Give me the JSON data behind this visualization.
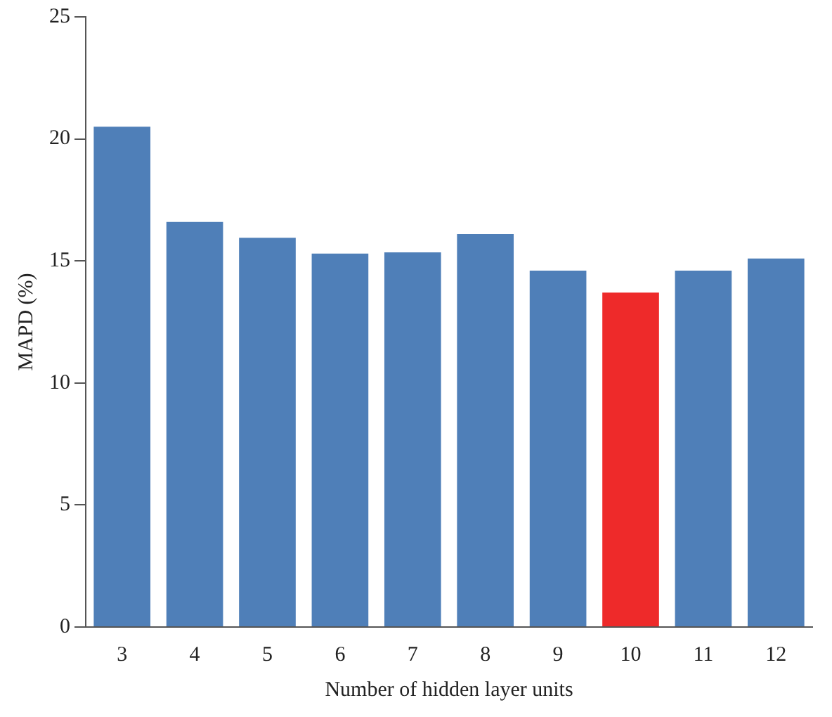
{
  "chart_data": {
    "type": "bar",
    "xlabel": "Number of hidden layer units",
    "ylabel": "MAPD (%)",
    "categories": [
      "3",
      "4",
      "5",
      "6",
      "7",
      "8",
      "9",
      "10",
      "11",
      "12"
    ],
    "values": [
      20.5,
      16.6,
      15.95,
      15.3,
      15.35,
      16.1,
      14.6,
      13.7,
      14.6,
      15.1
    ],
    "colors": [
      "#4f7fb8",
      "#4f7fb8",
      "#4f7fb8",
      "#4f7fb8",
      "#4f7fb8",
      "#4f7fb8",
      "#4f7fb8",
      "#ee2a2a",
      "#4f7fb8",
      "#4f7fb8"
    ],
    "ylim": [
      0,
      25
    ],
    "yticks": [
      0,
      5,
      10,
      15,
      20,
      25
    ],
    "grid": false,
    "legend": false
  }
}
